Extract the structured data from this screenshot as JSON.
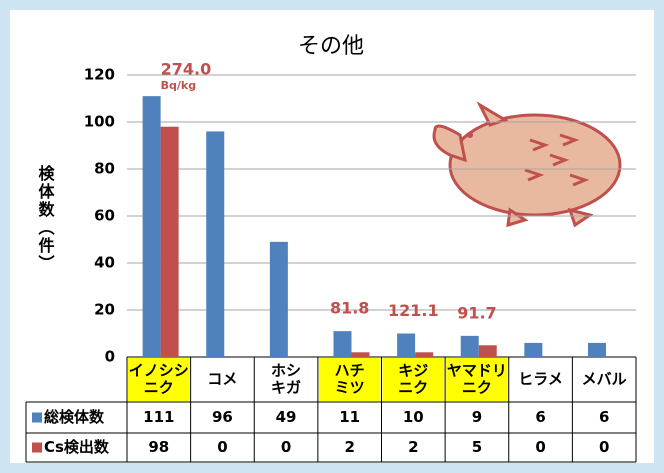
{
  "chart_data": {
    "type": "bar",
    "title": "その他",
    "ylabel": "検体数（件）",
    "categories": [
      [
        "イノシシ",
        "ニク"
      ],
      [
        "コメ"
      ],
      [
        "ホシ",
        "キガ"
      ],
      [
        "ハチ",
        "ミツ"
      ],
      [
        "キジ",
        "ニク"
      ],
      [
        "ヤマドリ",
        "ニク"
      ],
      [
        "ヒラメ"
      ],
      [
        "メバル"
      ]
    ],
    "highlight": [
      true,
      false,
      false,
      true,
      true,
      true,
      false,
      false
    ],
    "highlight_color": "#ffff00",
    "series": [
      {
        "name": "総検体数",
        "color": "#4f81bd",
        "values": [
          111,
          96,
          49,
          11,
          10,
          9,
          6,
          6
        ]
      },
      {
        "name": "Cs検出数",
        "color": "#c0504d",
        "values": [
          98,
          0,
          0,
          2,
          2,
          5,
          0,
          0
        ]
      }
    ],
    "annotations": [
      "274.0",
      null,
      null,
      "81.8",
      "121.1",
      "91.7",
      null,
      null
    ],
    "annotation_unit": "Bq/kg",
    "annotation_color": "#c0504d",
    "ylim": [
      0,
      120
    ],
    "yticks": [
      0,
      20,
      40,
      60,
      80,
      100,
      120
    ],
    "grid": true
  }
}
